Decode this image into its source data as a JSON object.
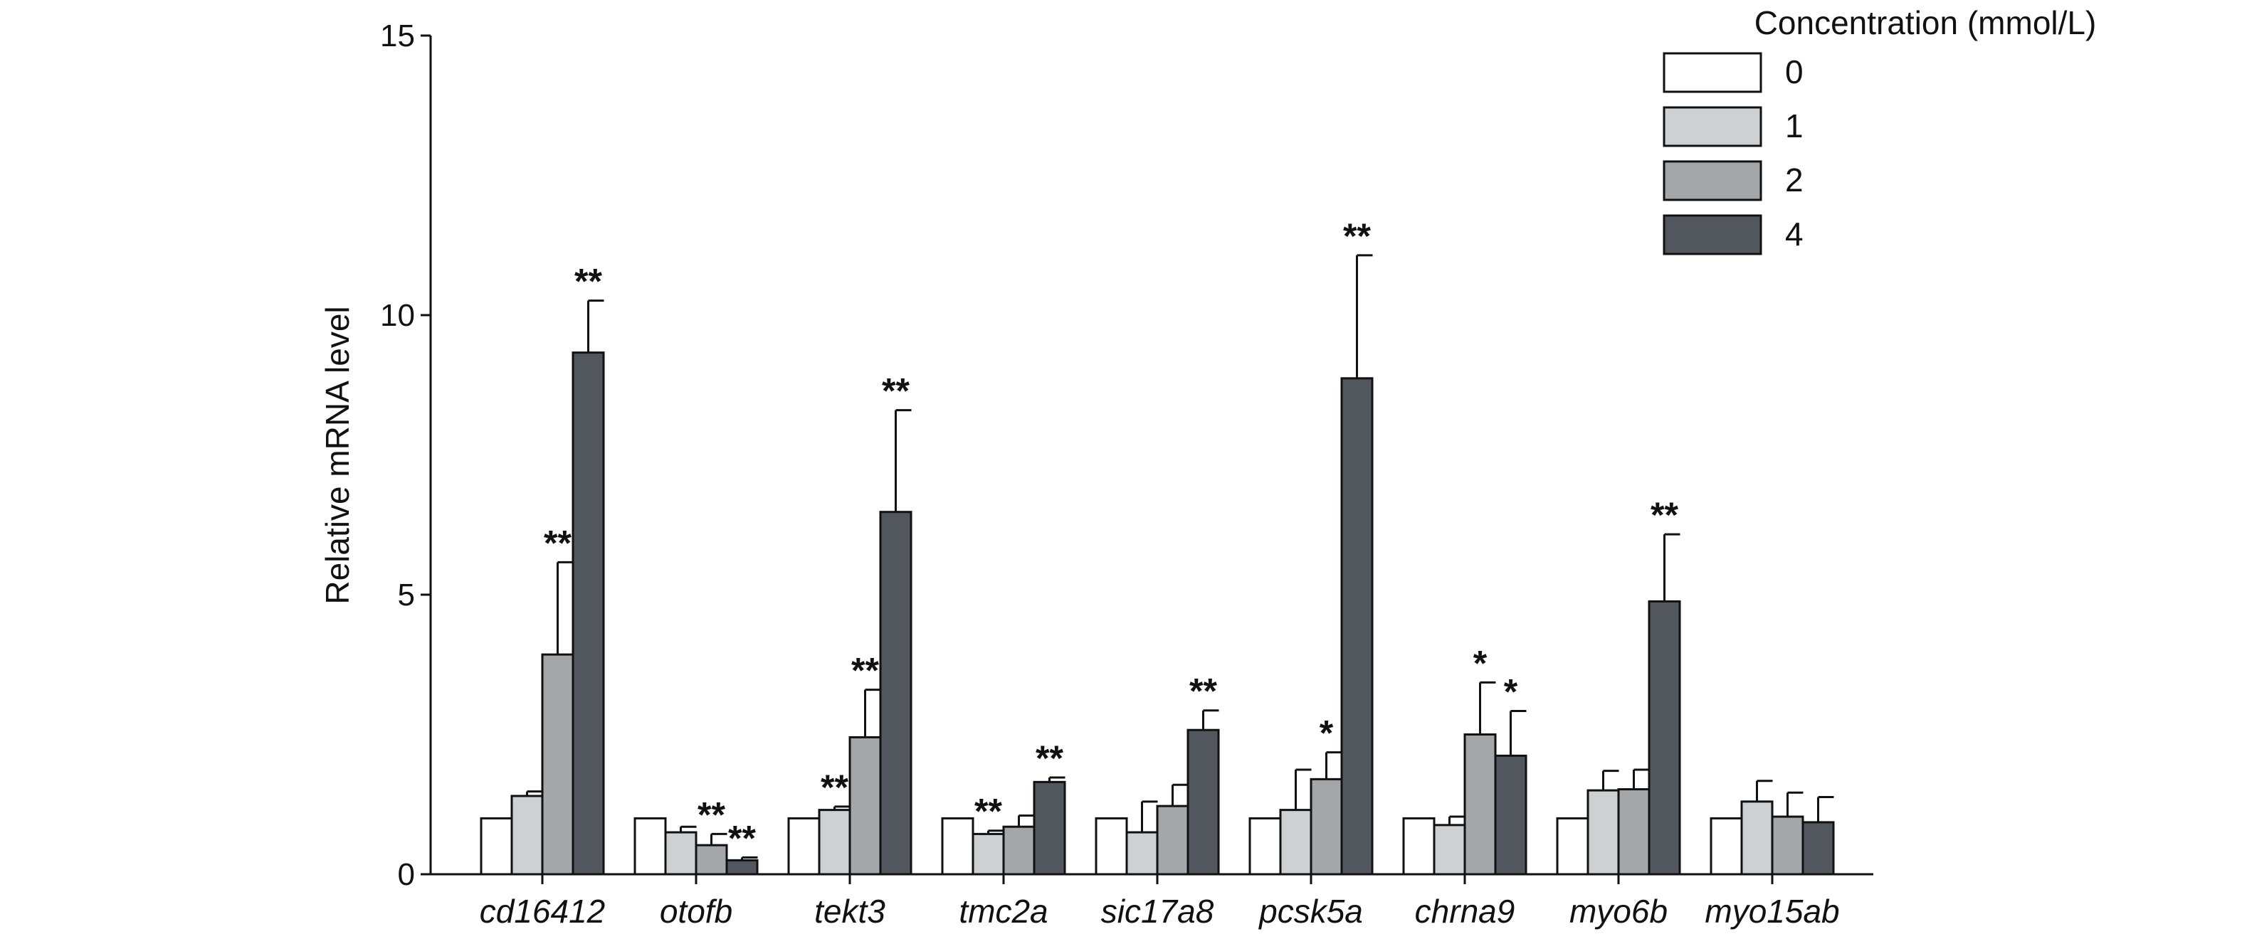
{
  "chart_data": {
    "type": "bar",
    "title": "",
    "xlabel": "",
    "ylabel": "Relative mRNA level",
    "ylim": [
      0,
      15
    ],
    "yticks": [
      0,
      5,
      10,
      15
    ],
    "grid": false,
    "legend_position": "top-right",
    "legend_title": "Concentration (mmol/L)",
    "categories": [
      "cd16412",
      "otofb",
      "tekt3",
      "tmc2a",
      "sic17a8",
      "pcsk5a",
      "chrna9",
      "myo6b",
      "myo15ab"
    ],
    "series": [
      {
        "name": "0",
        "color": "#ffffff",
        "values": [
          1.0,
          1.0,
          1.0,
          1.0,
          1.0,
          1.0,
          1.0,
          1.0,
          1.0
        ],
        "errors": [
          0,
          0,
          0,
          0,
          0,
          0,
          0,
          0,
          0
        ],
        "significance": [
          "",
          "",
          "",
          "",
          "",
          "",
          "",
          "",
          ""
        ]
      },
      {
        "name": "1",
        "color": "#cdd1d4",
        "values": [
          1.4,
          0.75,
          1.15,
          0.72,
          0.75,
          1.15,
          0.88,
          1.5,
          1.3
        ],
        "errors": [
          0.08,
          0.1,
          0.06,
          0.06,
          0.55,
          0.72,
          0.15,
          0.35,
          0.37
        ],
        "significance": [
          "",
          "",
          "**",
          "**",
          "",
          "",
          "",
          "",
          ""
        ]
      },
      {
        "name": "2",
        "color": "#a3a7aa",
        "values": [
          3.93,
          0.52,
          2.45,
          0.85,
          1.22,
          1.7,
          2.5,
          1.52,
          1.03
        ],
        "errors": [
          1.65,
          0.2,
          0.85,
          0.2,
          0.38,
          0.48,
          0.93,
          0.35,
          0.43
        ],
        "significance": [
          "**",
          "**",
          "**",
          "",
          "",
          "*",
          "*",
          "",
          ""
        ]
      },
      {
        "name": "4",
        "color": "#52575e",
        "values": [
          9.33,
          0.25,
          6.48,
          1.65,
          2.58,
          8.87,
          2.12,
          4.88,
          0.93
        ],
        "errors": [
          0.93,
          0.05,
          1.82,
          0.08,
          0.35,
          2.2,
          0.8,
          1.2,
          0.45
        ],
        "significance": [
          "**",
          "**",
          "**",
          "**",
          "**",
          "**",
          "*",
          "**",
          ""
        ]
      }
    ]
  }
}
